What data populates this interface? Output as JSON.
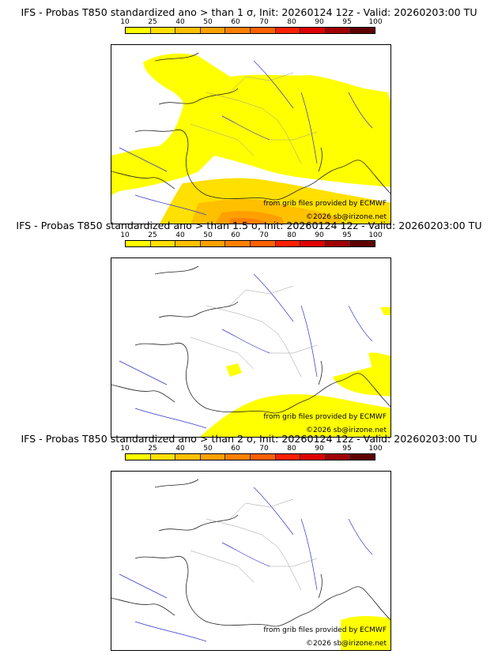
{
  "legend": {
    "ticks": [
      "10",
      "25",
      "40",
      "50",
      "60",
      "70",
      "80",
      "90",
      "95",
      "100"
    ],
    "colors": [
      "#ffff00",
      "#ffe000",
      "#ffc000",
      "#ffa000",
      "#ff8000",
      "#ff6000",
      "#ff2000",
      "#e00000",
      "#a00000",
      "#600000"
    ]
  },
  "panels": [
    {
      "title": "IFS - Probas T850  standardized ano > than 1 σ, Init: 20260124 12z - Valid: 20260203:00 TU"
    },
    {
      "title": "IFS - Probas T850  standardized ano > than 1.5 σ, Init: 20260124 12z - Valid: 20260203:00 TU"
    },
    {
      "title": "IFS - Probas T850  standardized ano > than 2 σ, Init: 20260124 12z - Valid: 20260203:00 TU"
    }
  ],
  "credits": {
    "source": "from grib files provided by ECMWF",
    "copyright": "©2026 sb@irizone.net"
  }
}
